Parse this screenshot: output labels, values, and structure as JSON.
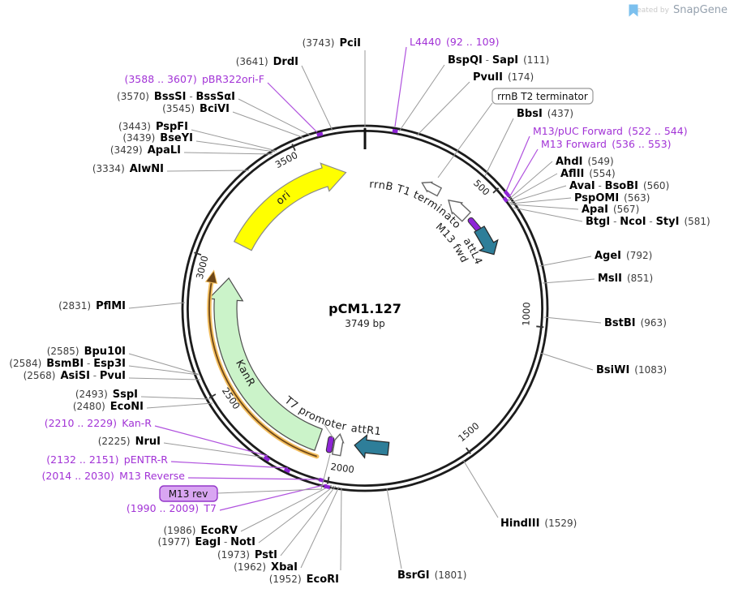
{
  "watermark": {
    "created_by": "Created by",
    "brand": "SnapGene"
  },
  "plasmid": {
    "name": "pCM1.127",
    "size": "3749 bp",
    "length_bp": 3749
  },
  "tick_labels": [
    "500",
    "1000",
    "1500",
    "2000",
    "2500",
    "3000",
    "3500"
  ],
  "features": {
    "ori": "ori",
    "kanr": "KanR",
    "attl4": "attL4",
    "attr1": "attR1",
    "m13_fwd": "M13 fwd",
    "t7_promoter": "T7 promoter",
    "rrnb_t1_terminator": "rrnB T1 terminator",
    "rrnb_t2_terminator": "rrnB T2 terminator",
    "m13_rev_boxed": "M13 rev"
  },
  "enzymes": [
    {
      "name": "PciI",
      "pos": "(3743)"
    },
    {
      "name": "DrdI",
      "pos": "(3641)"
    },
    {
      "name": "BssSI - BssSαI",
      "pos": "(3570)"
    },
    {
      "name": "BciVI",
      "pos": "(3545)"
    },
    {
      "name": "PspFI",
      "pos": "(3443)"
    },
    {
      "name": "BseYI",
      "pos": "(3439)"
    },
    {
      "name": "ApaLI",
      "pos": "(3429)"
    },
    {
      "name": "AlwNI",
      "pos": "(3334)"
    },
    {
      "name": "PflMI",
      "pos": "(2831)"
    },
    {
      "name": "Bpu10I",
      "pos": "(2585)"
    },
    {
      "name": "BsmBI - Esp3I",
      "pos": "(2584)"
    },
    {
      "name": "AsiSI - PvuI",
      "pos": "(2568)"
    },
    {
      "name": "SspI",
      "pos": "(2493)"
    },
    {
      "name": "EcoNI",
      "pos": "(2480)"
    },
    {
      "name": "NruI",
      "pos": "(2225)"
    },
    {
      "name": "EcoRV",
      "pos": "(1986)"
    },
    {
      "name": "EagI - NotI",
      "pos": "(1977)"
    },
    {
      "name": "PstI",
      "pos": "(1973)"
    },
    {
      "name": "XbaI",
      "pos": "(1962)"
    },
    {
      "name": "EcoRI",
      "pos": "(1952)"
    },
    {
      "name": "BsrGI",
      "pos": "(1801)"
    },
    {
      "name": "HindIII",
      "pos": "(1529)"
    },
    {
      "name": "BsiWI",
      "pos": "(1083)"
    },
    {
      "name": "BstBI",
      "pos": "(963)"
    },
    {
      "name": "MslI",
      "pos": "(851)"
    },
    {
      "name": "AgeI",
      "pos": "(792)"
    },
    {
      "name": "BtgI - NcoI - StyI",
      "pos": "(581)"
    },
    {
      "name": "ApaI",
      "pos": "(567)"
    },
    {
      "name": "PspOMI",
      "pos": "(563)"
    },
    {
      "name": "AvaI - BsoBI",
      "pos": "(560)"
    },
    {
      "name": "AflII",
      "pos": "(554)"
    },
    {
      "name": "AhdI",
      "pos": "(549)"
    },
    {
      "name": "BbsI",
      "pos": "(437)"
    },
    {
      "name": "PvuII",
      "pos": "(174)"
    },
    {
      "name": "BspQI - SapI",
      "pos": "(111)"
    }
  ],
  "primers": [
    {
      "name": "L4440",
      "pos": "(92 .. 109)"
    },
    {
      "name": "M13/pUC Forward",
      "pos": "(522 .. 544)"
    },
    {
      "name": "M13 Forward",
      "pos": "(536 .. 553)"
    },
    {
      "name": "pBR322ori-F",
      "pos": "(3588 .. 3607)"
    },
    {
      "name": "Kan-R",
      "pos": "(2210 .. 2229)"
    },
    {
      "name": "pENTR-R",
      "pos": "(2132 .. 2151)"
    },
    {
      "name": "M13 Reverse",
      "pos": "(2014 .. 2030)"
    },
    {
      "name": "T7",
      "pos": "(1990 .. 2009)"
    }
  ],
  "colors": {
    "primer_purple": "#A233D6",
    "primer_glyph_purple": "#8E24D6",
    "att_teal": "#2E7E99",
    "kanr_green": "#CBF3C9",
    "ori_yellow": "#FFFF00",
    "orange_glow": "#F3BE5E",
    "orange_core": "#6E4718",
    "ring_dark": "#1c1c1c",
    "connector_gray": "#9a9a9a",
    "m13rev_box_fill": "#D9A6F2",
    "m13rev_box_border": "#9437C9",
    "logo_blue": "#7cc0ee"
  }
}
